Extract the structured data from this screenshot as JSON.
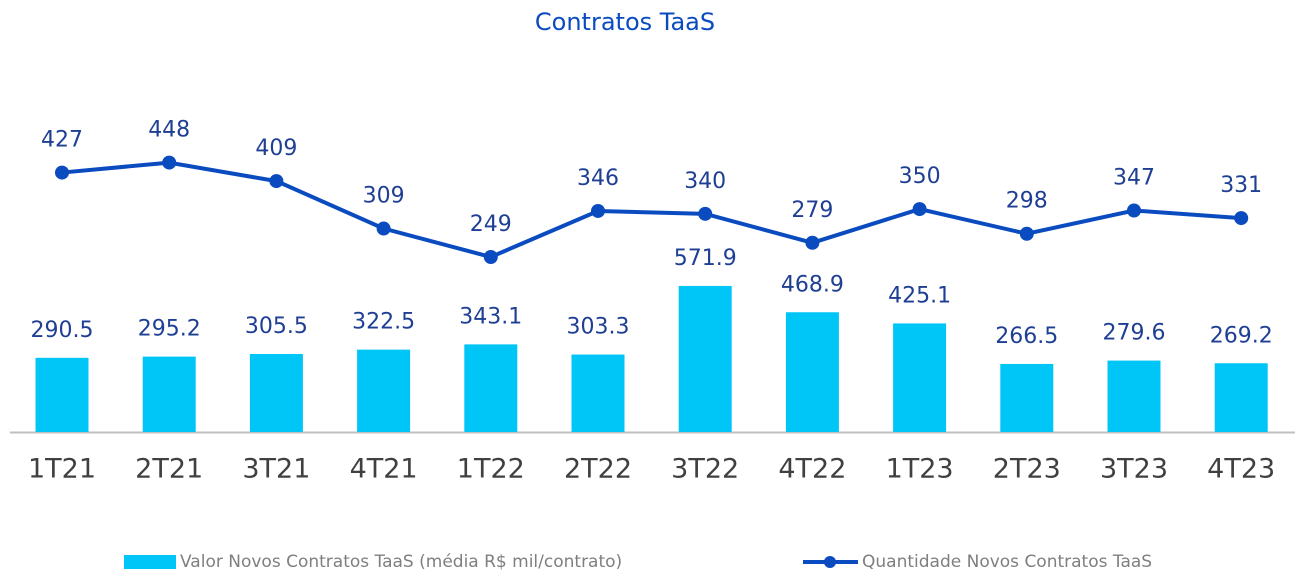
{
  "chart_data": {
    "type": "bar-line",
    "title": "Contratos TaaS",
    "categories": [
      "1T21",
      "2T21",
      "3T21",
      "4T21",
      "1T22",
      "2T22",
      "3T22",
      "4T22",
      "1T23",
      "2T23",
      "3T23",
      "4T23"
    ],
    "series": [
      {
        "name": "Valor Novos Contratos TaaS (média R$ mil/contrato)",
        "type": "bar",
        "color": "#00c5f7",
        "values": [
          290.5,
          295.2,
          305.5,
          322.5,
          343.1,
          303.3,
          571.9,
          468.9,
          425.1,
          266.5,
          279.6,
          269.2
        ]
      },
      {
        "name": "Quantidade Novos Contratos TaaS",
        "type": "line",
        "axis": "y2",
        "color": "#0a4bc0",
        "values": [
          427,
          448,
          409,
          309,
          249,
          346,
          340,
          279,
          350,
          298,
          347,
          331
        ]
      }
    ],
    "ylim": [
      0,
      1300
    ],
    "y2lim": [
      -120,
      580
    ],
    "legend": "bottom"
  }
}
